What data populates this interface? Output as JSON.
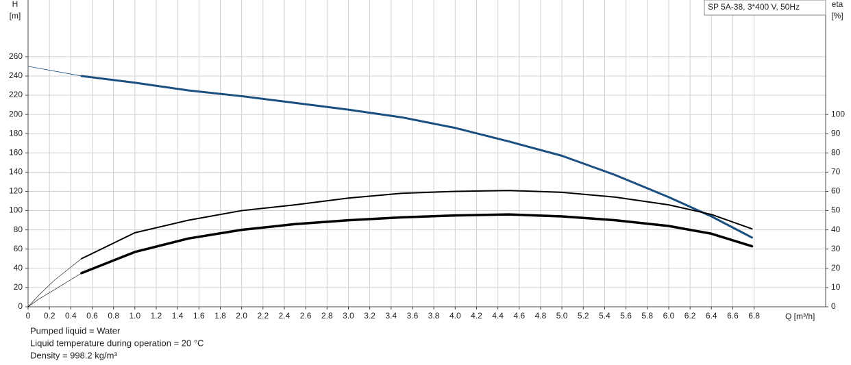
{
  "chart_data": {
    "type": "line",
    "box_title": "SP 5A-38, 3*400 V, 50Hz",
    "y_label": "H",
    "y_unit": "[m]",
    "y2_label": "eta",
    "y2_unit": "[%]",
    "x_label": "Q [m³/h]",
    "notes": [
      "Pumped liquid = Water",
      "Liquid temperature during operation = 20 °C",
      "Density = 998.2 kg/m³"
    ],
    "xlim": [
      0,
      7.47
    ],
    "ylim": [
      0,
      319
    ],
    "y2lim": [
      0,
      159.5
    ],
    "grid": true,
    "xticks": [
      0,
      0.2,
      0.4,
      0.6,
      0.8,
      {
        "value": 1,
        "label": "1.0"
      },
      1.2,
      1.4,
      1.6,
      1.8,
      {
        "value": 2,
        "label": "2.0"
      },
      2.2,
      2.4,
      2.6,
      2.8,
      {
        "value": 3,
        "label": "3.0"
      },
      3.2,
      3.4,
      3.6,
      3.8,
      {
        "value": 4,
        "label": "4.0"
      },
      4.2,
      4.4,
      4.6,
      4.8,
      {
        "value": 5,
        "label": "5.0"
      },
      5.2,
      5.4,
      5.6,
      5.8,
      {
        "value": 6,
        "label": "6.0"
      },
      6.2,
      6.4,
      6.6,
      6.8
    ],
    "yticks": [
      0,
      20,
      40,
      60,
      80,
      100,
      120,
      140,
      160,
      180,
      200,
      220,
      240,
      260
    ],
    "y2ticks": [
      0,
      10,
      20,
      30,
      40,
      50,
      60,
      70,
      80,
      90,
      100
    ],
    "series": [
      {
        "color": "#1a4f80",
        "width": 3,
        "x": [
          0.5,
          1.0,
          1.5,
          2.0,
          2.5,
          3.0,
          3.5,
          4.0,
          4.5,
          5.0,
          5.5,
          6.0,
          6.4,
          6.78
        ],
        "values": [
          240,
          233,
          225,
          219,
          212,
          205,
          197,
          186,
          172,
          157,
          137,
          114,
          94,
          72
        ]
      },
      {
        "color": "#1a4f80",
        "width": 0.8,
        "x": [
          0,
          0.25,
          0.5
        ],
        "values": [
          250,
          245,
          240
        ]
      },
      {
        "color": "#000000",
        "width": 2,
        "axis": "y2",
        "x": [
          0.5,
          1.0,
          1.5,
          2.0,
          2.5,
          3.0,
          3.5,
          4.0,
          4.5,
          5.0,
          5.5,
          6.0,
          6.4,
          6.78
        ],
        "values": [
          25,
          38.5,
          45,
          50,
          53,
          56.5,
          59,
          60,
          60.5,
          59.5,
          57,
          53,
          48,
          40.5
        ]
      },
      {
        "color": "#000000",
        "width": 0.6,
        "axis": "y2",
        "x": [
          0,
          0.1,
          0.25,
          0.5
        ],
        "values": [
          0,
          6,
          14,
          25
        ]
      },
      {
        "color": "#000000",
        "width": 3.5,
        "axis": "y2",
        "x": [
          0.5,
          1.0,
          1.5,
          2.0,
          2.5,
          3.0,
          3.5,
          4.0,
          4.5,
          5.0,
          5.5,
          6.0,
          6.4,
          6.78
        ],
        "values": [
          17.5,
          28.5,
          35.5,
          40,
          43,
          45,
          46.5,
          47.5,
          48,
          47,
          45,
          42,
          38,
          31.5
        ]
      },
      {
        "color": "#000000",
        "width": 0.6,
        "axis": "y2",
        "x": [
          0,
          0.1,
          0.25,
          0.5
        ],
        "values": [
          0,
          4,
          9,
          17.5
        ]
      }
    ]
  }
}
